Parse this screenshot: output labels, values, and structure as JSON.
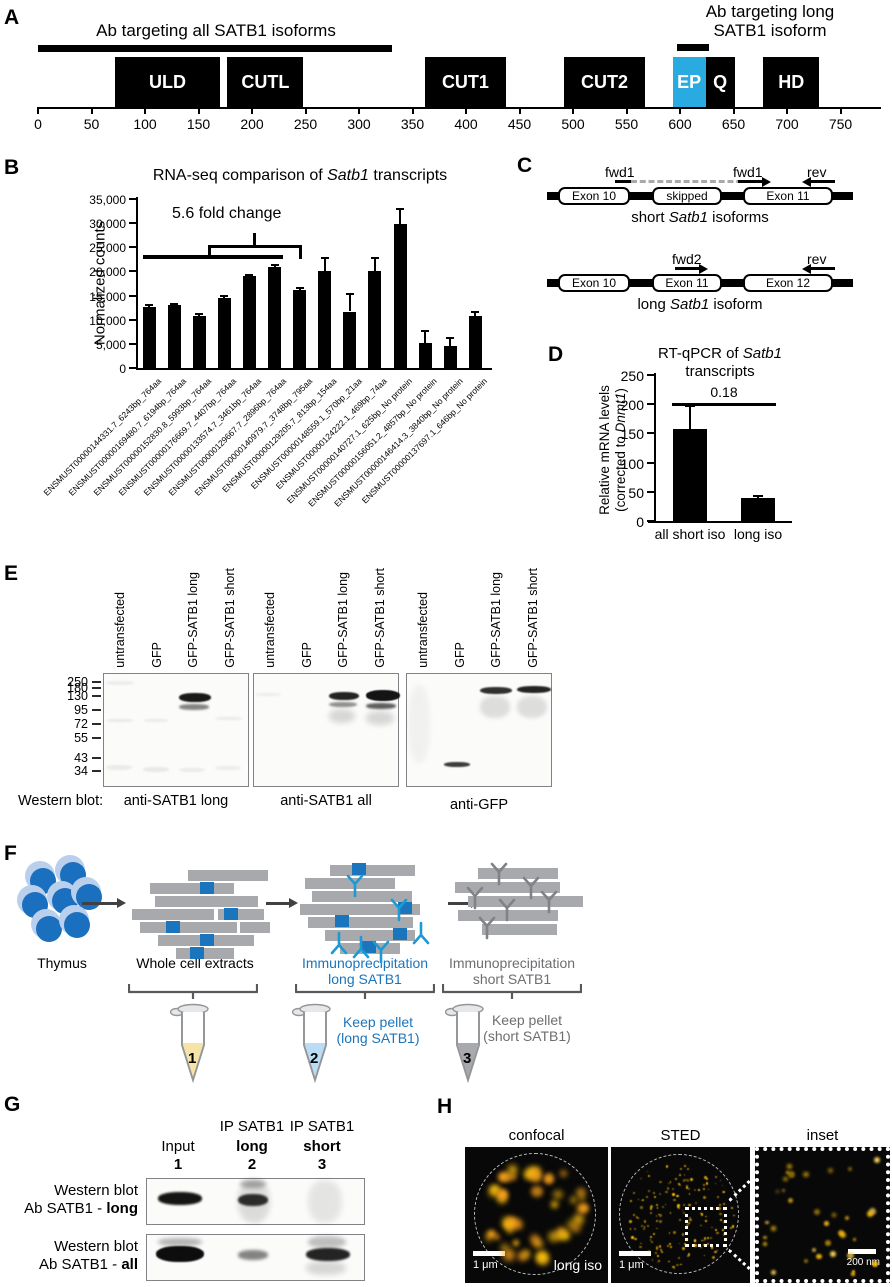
{
  "panelA": {
    "label": "A",
    "ab_all_label": "Ab targeting all SATB1 isoforms",
    "ab_long_label_line1": "Ab targeting long",
    "ab_long_label_line2": "SATB1 isoform",
    "ab_all_span": [
      0,
      331
    ],
    "ab_long_span": [
      597,
      627
    ],
    "domains": [
      {
        "name": "ULD",
        "start": 72,
        "end": 170,
        "color": "#000000"
      },
      {
        "name": "CUTL",
        "start": 177,
        "end": 248,
        "color": "#000000"
      },
      {
        "name": "CUT1",
        "start": 362,
        "end": 437,
        "color": "#000000"
      },
      {
        "name": "CUT2",
        "start": 492,
        "end": 567,
        "color": "#000000"
      },
      {
        "name": "EP",
        "start": 593,
        "end": 624,
        "color": "#29abe2"
      },
      {
        "name": "Q",
        "start": 624,
        "end": 651,
        "color": "#000000"
      },
      {
        "name": "HD",
        "start": 678,
        "end": 730,
        "color": "#000000"
      }
    ],
    "axis_ticks": [
      0,
      50,
      100,
      150,
      200,
      250,
      300,
      350,
      400,
      450,
      500,
      550,
      600,
      650,
      700,
      750
    ]
  },
  "panelB": {
    "label": "B"
  },
  "panelC": {
    "label": "C",
    "rows": [
      {
        "exons": [
          "Exon 10",
          "skipped",
          "Exon 11"
        ],
        "caption_parts": [
          [
            "short ",
            0
          ],
          [
            "Satb1",
            1
          ],
          [
            " isoforms",
            0
          ]
        ],
        "primer1": "fwd1",
        "primer2": "fwd1",
        "primer3": "rev"
      },
      {
        "exons": [
          "Exon 10",
          "Exon 11",
          "Exon 12"
        ],
        "caption_parts": [
          [
            "long ",
            0
          ],
          [
            "Satb1",
            1
          ],
          [
            " isoform",
            0
          ]
        ],
        "primer1": "fwd2",
        "primer3": "rev"
      }
    ]
  },
  "panelD": {
    "label": "D"
  },
  "panelE": {
    "label": "E",
    "caption_prefix": "Western blot:",
    "mw_markers": [
      "250",
      "180",
      "130",
      "95",
      "72",
      "55",
      "43",
      "34"
    ],
    "lane_labels": [
      "untransfected",
      "GFP",
      "GFP-SATB1 long",
      "GFP-SATB1 short"
    ],
    "blots": [
      {
        "antibody": "anti-SATB1 long",
        "bands": [
          [
            76,
            20,
            32,
            9,
            0.95,
            0.8
          ],
          [
            76,
            31,
            30,
            6,
            0.5,
            1
          ],
          [
            3,
            46,
            28,
            3,
            0.08,
            1
          ],
          [
            3,
            8,
            28,
            4,
            0.06,
            1
          ],
          [
            40,
            46,
            26,
            3,
            0.07,
            1
          ],
          [
            112,
            44,
            28,
            3,
            0.07,
            1
          ],
          [
            3,
            92,
            26,
            5,
            0.07,
            1
          ],
          [
            40,
            94,
            26,
            5,
            0.08,
            1
          ],
          [
            76,
            95,
            26,
            4,
            0.07,
            1
          ],
          [
            112,
            93,
            26,
            4,
            0.06,
            1
          ]
        ]
      },
      {
        "antibody": "anti-SATB1 all",
        "bands": [
          [
            76,
            19,
            30,
            8,
            0.9,
            0.8
          ],
          [
            76,
            29,
            28,
            5,
            0.45,
            1
          ],
          [
            76,
            36,
            26,
            14,
            0.15,
            3
          ],
          [
            113,
            17,
            34,
            11,
            0.97,
            0.6
          ],
          [
            113,
            30,
            30,
            6,
            0.65,
            1
          ],
          [
            113,
            38,
            28,
            14,
            0.15,
            3
          ],
          [
            2,
            20,
            26,
            3,
            0.06,
            1
          ]
        ]
      },
      {
        "antibody": "anti-GFP",
        "bands": [
          [
            74,
            14,
            32,
            7,
            0.85,
            0.8
          ],
          [
            111,
            13,
            34,
            7,
            0.9,
            0.7
          ],
          [
            74,
            23,
            30,
            22,
            0.12,
            2
          ],
          [
            111,
            23,
            30,
            22,
            0.12,
            2
          ],
          [
            38,
            89,
            26,
            5,
            0.8,
            0.8
          ],
          [
            2,
            12,
            22,
            78,
            0.04,
            3
          ]
        ]
      }
    ]
  },
  "panelF": {
    "label": "F",
    "source_label": "Thymus",
    "step1_label": "Whole cell extracts",
    "step2_label_line1": "Immunoprecipitation",
    "step2_label_line2": "long SATB1",
    "step3_label_line1": "Immunoprecipitation",
    "step3_label_line2": "short SATB1",
    "tube_numbers": [
      "1",
      "2",
      "3"
    ],
    "tube2_note_line1": "Keep pellet",
    "tube2_note_line2": "(long SATB1)",
    "tube3_note_line1": "Keep pellet",
    "tube3_note_line2": "(short SATB1)",
    "blue": "#1b75bc",
    "antibody_blue": "#1c9ad6",
    "gray": "#6d6e71",
    "tube_fills": [
      "#f6e3a8",
      "#b9ddf5",
      "#a7a9ac"
    ]
  },
  "panelG": {
    "label": "G",
    "col_headers": [
      {
        "top": "",
        "mid": "Input",
        "num": "1",
        "bold": false
      },
      {
        "top": "IP SATB1",
        "mid": "long",
        "num": "2",
        "bold": true
      },
      {
        "top": "IP SATB1",
        "mid": "short",
        "num": "3",
        "bold": true
      }
    ],
    "row_labels": [
      {
        "line1": "Western blot",
        "prefix": "Ab SATB1 - ",
        "bold": "long"
      },
      {
        "line1": "Western blot",
        "prefix": "Ab SATB1 - ",
        "bold": "all"
      }
    ],
    "blot_bands": [
      [
        [
          12,
          14,
          44,
          13,
          0.97,
          1
        ],
        [
          92,
          16,
          30,
          12,
          0.85,
          1
        ],
        [
          92,
          2,
          32,
          43,
          0.13,
          3
        ],
        [
          94,
          2,
          26,
          8,
          0.3,
          2
        ],
        [
          162,
          2,
          34,
          43,
          0.09,
          3
        ]
      ],
      [
        [
          10,
          12,
          48,
          16,
          1,
          0.8
        ],
        [
          12,
          4,
          44,
          8,
          0.3,
          2
        ],
        [
          92,
          16,
          30,
          10,
          0.5,
          1.5
        ],
        [
          160,
          14,
          44,
          13,
          0.9,
          1
        ],
        [
          162,
          2,
          38,
          12,
          0.25,
          2
        ],
        [
          160,
          27,
          40,
          14,
          0.15,
          3
        ]
      ]
    ]
  },
  "panelH": {
    "label": "H",
    "images": [
      {
        "title": "confocal",
        "scalebar": "1 μm",
        "corner_label": "long iso"
      },
      {
        "title": "STED",
        "scalebar": "1 μm"
      },
      {
        "title": "inset",
        "scalebar": "200 nm"
      }
    ],
    "dot_color": "#ffc20e"
  },
  "chart_data": [
    {
      "type": "bar",
      "title_parts": [
        [
          "RNA-seq comparison of ",
          0
        ],
        [
          "Satb1",
          1
        ],
        [
          " transcripts",
          0
        ]
      ],
      "ylabel": "Normalized counts",
      "ylim": [
        0,
        35000
      ],
      "yticks": [
        "0",
        "5,000",
        "10,000",
        "15,000",
        "20,000",
        "25,000",
        "30,000",
        "35,000"
      ],
      "categories": [
        "ENSMUST00000144331.7_6243bp_764aa",
        "ENSMUST00000169480.7_6194bp_764aa",
        "ENSMUST00000152830.8_5993bp_764aa",
        "ENSMUST00000176669.7_4407bp_764aa",
        "ENSMUST00000133574.7_3461bp_764aa",
        "ENSMUST00000129667.7_2896bp_764aa",
        "ENSMUST00000140979.7_3748bp_795aa",
        "ENSMUST00000129205.7_813bp_154aa",
        "ENSMUST00000148559.1_570bp_21aa",
        "ENSMUST00000124222.1_469bp_74aa",
        "ENSMUST00000140727.1_625bp_No protein",
        "ENSMUST00000156051.2_4857bp_No protein",
        "ENSMUST00000146414.3_3840bp_No protein",
        "ENSMUST00000137697.1_646bp_No protein"
      ],
      "values": [
        12700,
        13000,
        10700,
        14500,
        19000,
        21000,
        16200,
        20100,
        11700,
        20000,
        29900,
        5200,
        4500,
        10800
      ],
      "errors": [
        300,
        350,
        500,
        500,
        350,
        350,
        400,
        2700,
        3700,
        2700,
        3100,
        2500,
        1700,
        700
      ],
      "annotation": "5.6 fold change",
      "grid": false,
      "legend": false
    },
    {
      "type": "bar",
      "title_line1_parts": [
        [
          "RT-qPCR of ",
          0
        ],
        [
          "Satb1",
          1
        ]
      ],
      "title_line2": "transcripts",
      "ylabel_line1": "Relative mRNA levels",
      "ylabel_line2_parts": [
        [
          "(corrected to ",
          0
        ],
        [
          "Dnmt1",
          1
        ],
        [
          ")",
          0
        ]
      ],
      "ylim": [
        0,
        250
      ],
      "yticks": [
        "0",
        "50",
        "100",
        "150",
        "200",
        "250"
      ],
      "categories": [
        "all short iso",
        "long iso"
      ],
      "values": [
        158,
        39
      ],
      "errors": [
        39,
        3
      ],
      "annotation": "0.18",
      "grid": false,
      "legend": false
    }
  ]
}
